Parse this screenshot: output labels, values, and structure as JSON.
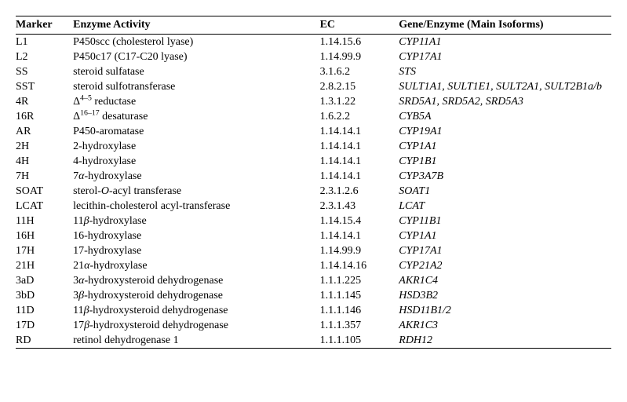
{
  "columns": [
    "Marker",
    "Enzyme Activity",
    "EC",
    "Gene/Enzyme (Main Isoforms)"
  ],
  "rows": [
    {
      "marker": "L1",
      "activity_html": "P450scc (cholesterol lyase)",
      "ec": "1.14.15.6",
      "gene": "CYP11A1"
    },
    {
      "marker": "L2",
      "activity_html": "P450c17 (C17-C20 lyase)",
      "ec": "1.14.99.9",
      "gene": "CYP17A1"
    },
    {
      "marker": "SS",
      "activity_html": "steroid sulfatase",
      "ec": "3.1.6.2",
      "gene": "STS"
    },
    {
      "marker": "SST",
      "activity_html": "steroid sulfotransferase",
      "ec": "2.8.2.15",
      "gene": "SULT1A1, SULT1E1, SULT2A1, SULT2B1a/b"
    },
    {
      "marker": "4R",
      "activity_html": "Δ<sup>4–5</sup> reductase",
      "ec": "1.3.1.22",
      "gene": "SRD5A1, SRD5A2, SRD5A3"
    },
    {
      "marker": "16R",
      "activity_html": "Δ<sup>16–17</sup> desaturase",
      "ec": "1.6.2.2",
      "gene": "CYB5A"
    },
    {
      "marker": "AR",
      "activity_html": "P450-aromatase",
      "ec": "1.14.14.1",
      "gene": "CYP19A1"
    },
    {
      "marker": "2H",
      "activity_html": "2-hydroxylase",
      "ec": "1.14.14.1",
      "gene": "CYP1A1"
    },
    {
      "marker": "4H",
      "activity_html": "4-hydroxylase",
      "ec": "1.14.14.1",
      "gene": "CYP1B1"
    },
    {
      "marker": "7H",
      "activity_html": "7<span class=\"italic\">α</span>-hydroxylase",
      "ec": "1.14.14.1",
      "gene": "CYP3A7B"
    },
    {
      "marker": "SOAT",
      "activity_html": "sterol-<span class=\"italic\">O</span>-acyl transferase",
      "ec": "2.3.1.2.6",
      "gene": "SOAT1"
    },
    {
      "marker": "LCAT",
      "activity_html": "lecithin-cholesterol acyl-transferase",
      "ec": "2.3.1.43",
      "gene": "LCAT"
    },
    {
      "marker": "11H",
      "activity_html": "11<span class=\"italic\">β</span>-hydroxylase",
      "ec": "1.14.15.4",
      "gene": "CYP11B1"
    },
    {
      "marker": "16H",
      "activity_html": "16-hydroxylase",
      "ec": "1.14.14.1",
      "gene": "CYP1A1"
    },
    {
      "marker": "17H",
      "activity_html": "17-hydroxylase",
      "ec": "1.14.99.9",
      "gene": "CYP17A1"
    },
    {
      "marker": "21H",
      "activity_html": "21<span class=\"italic\">α</span>-hydroxylase",
      "ec": "1.14.14.16",
      "gene": "CYP21A2"
    },
    {
      "marker": "3aD",
      "activity_html": "3<span class=\"italic\">α</span>-hydroxysteroid dehydrogenase",
      "ec": "1.1.1.225",
      "gene": "AKR1C4"
    },
    {
      "marker": "3bD",
      "activity_html": "3<span class=\"italic\">β</span>-hydroxysteroid dehydrogenase",
      "ec": "1.1.1.145",
      "gene": "HSD3B2"
    },
    {
      "marker": "11D",
      "activity_html": "11<span class=\"italic\">β</span>-hydroxysteroid dehydrogenase",
      "ec": "1.1.1.146",
      "gene": "HSD11B1/2"
    },
    {
      "marker": "17D",
      "activity_html": "17<span class=\"italic\">β</span>-hydroxysteroid dehydrogenase",
      "ec": "1.1.1.357",
      "gene": "AKR1C3"
    },
    {
      "marker": "RD",
      "activity_html": "retinol dehydrogenase 1",
      "ec": "1.1.1.105",
      "gene": "RDH12"
    }
  ]
}
